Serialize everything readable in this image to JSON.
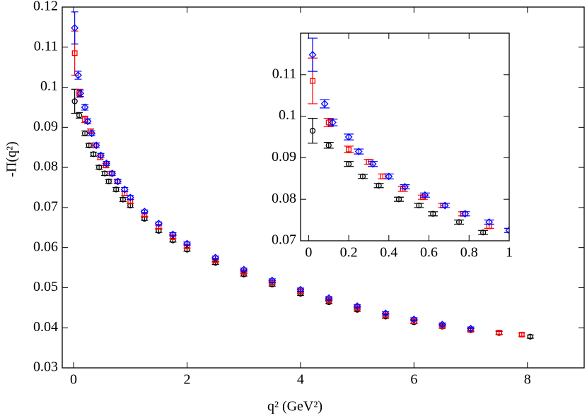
{
  "chart_data": [
    {
      "type": "scatter",
      "x_label": "q² (GeV²)",
      "y_label": "-Π(q²)",
      "xlim": [
        -0.2,
        9
      ],
      "ylim": [
        0.03,
        0.12
      ],
      "xticks": [
        0,
        2,
        4,
        6,
        8
      ],
      "yticks": [
        0.03,
        0.04,
        0.05,
        0.06,
        0.07,
        0.08,
        0.09,
        0.1,
        0.11,
        0.12
      ],
      "series": [
        {
          "color": "#000000",
          "marker": "circle",
          "x": [
            0.02,
            0.1,
            0.2,
            0.27,
            0.35,
            0.45,
            0.55,
            0.62,
            0.75,
            0.87,
            1.0,
            1.25,
            1.5,
            1.75,
            2.0,
            2.5,
            3.0,
            3.5,
            4.0,
            4.5,
            5.0,
            5.5,
            6.0,
            6.5,
            7.0,
            7.5,
            8.05
          ],
          "values": [
            0.0965,
            0.093,
            0.0885,
            0.0855,
            0.0833,
            0.08,
            0.0785,
            0.0765,
            0.0745,
            0.072,
            0.0705,
            0.0672,
            0.0642,
            0.0618,
            0.0595,
            0.0562,
            0.0533,
            0.0508,
            0.0485,
            0.0464,
            0.0445,
            0.0428,
            0.0414,
            0.0403,
            0.0394,
            0.0387,
            0.0378
          ],
          "errors": [
            0.003,
            0.0007,
            0.0006,
            0.0005,
            0.0005,
            0.0005,
            0.0005,
            0.0005,
            0.0005,
            0.0005,
            0.0005,
            0.0004,
            0.0004,
            0.0004,
            0.0004,
            0.0004,
            0.0004,
            0.0004,
            0.0004,
            0.0004,
            0.0004,
            0.0004,
            0.0004,
            0.0004,
            0.0004,
            0.0004,
            0.0004
          ]
        },
        {
          "color": "#ff0000",
          "marker": "square",
          "x": [
            0.02,
            0.1,
            0.2,
            0.3,
            0.37,
            0.47,
            0.57,
            0.67,
            0.77,
            0.9,
            1.0,
            1.25,
            1.5,
            1.75,
            2.0,
            2.5,
            3.0,
            3.5,
            4.0,
            4.5,
            5.0,
            5.5,
            6.0,
            6.5,
            7.0,
            7.5,
            7.9
          ],
          "values": [
            0.1085,
            0.0985,
            0.092,
            0.089,
            0.0855,
            0.0825,
            0.0805,
            0.0785,
            0.0765,
            0.0735,
            0.0715,
            0.0682,
            0.0652,
            0.0626,
            0.0603,
            0.0568,
            0.0539,
            0.0513,
            0.049,
            0.0469,
            0.0449,
            0.0431,
            0.0416,
            0.0404,
            0.0395,
            0.0388,
            0.0383
          ],
          "errors": [
            0.0055,
            0.001,
            0.0008,
            0.0006,
            0.0006,
            0.0006,
            0.0005,
            0.0005,
            0.0005,
            0.0005,
            0.0005,
            0.0004,
            0.0004,
            0.0004,
            0.0004,
            0.0004,
            0.0004,
            0.0004,
            0.0004,
            0.0004,
            0.0004,
            0.0004,
            0.0004,
            0.0004,
            0.0004,
            0.0004,
            0.0004
          ]
        },
        {
          "color": "#0000ff",
          "marker": "diamond",
          "x": [
            0.02,
            0.08,
            0.12,
            0.2,
            0.25,
            0.32,
            0.4,
            0.48,
            0.58,
            0.68,
            0.78,
            0.9,
            1.0,
            1.25,
            1.5,
            1.75,
            2.0,
            2.5,
            3.0,
            3.5,
            4.0,
            4.5,
            5.0,
            5.5,
            6.0,
            6.5,
            7.0
          ],
          "values": [
            0.1148,
            0.103,
            0.0985,
            0.095,
            0.0915,
            0.0885,
            0.0855,
            0.083,
            0.081,
            0.0785,
            0.0765,
            0.0745,
            0.0725,
            0.069,
            0.066,
            0.0633,
            0.061,
            0.0575,
            0.0545,
            0.0518,
            0.0495,
            0.0474,
            0.0454,
            0.0436,
            0.0421,
            0.0408,
            0.0398
          ],
          "errors": [
            0.004,
            0.001,
            0.0008,
            0.0007,
            0.0006,
            0.0006,
            0.0006,
            0.0005,
            0.0005,
            0.0005,
            0.0005,
            0.0005,
            0.0005,
            0.0004,
            0.0004,
            0.0004,
            0.0004,
            0.0004,
            0.0004,
            0.0004,
            0.0004,
            0.0004,
            0.0004,
            0.0004,
            0.0004,
            0.0004,
            0.0004
          ]
        }
      ]
    },
    {
      "type": "scatter",
      "xlim": [
        -0.04,
        1
      ],
      "ylim": [
        0.07,
        0.12
      ],
      "xticks": [
        0,
        0.2,
        0.4,
        0.6,
        0.8,
        1
      ],
      "yticks": [
        0.07,
        0.08,
        0.09,
        0.1,
        0.11
      ],
      "series": [
        {
          "color": "#000000",
          "marker": "circle",
          "x": [
            0.02,
            0.1,
            0.2,
            0.27,
            0.35,
            0.45,
            0.55,
            0.62,
            0.75,
            0.87
          ],
          "values": [
            0.0965,
            0.093,
            0.0885,
            0.0855,
            0.0833,
            0.08,
            0.0785,
            0.0765,
            0.0745,
            0.072
          ],
          "errors": [
            0.003,
            0.0007,
            0.0006,
            0.0005,
            0.0005,
            0.0005,
            0.0005,
            0.0005,
            0.0005,
            0.0005
          ]
        },
        {
          "color": "#ff0000",
          "marker": "square",
          "x": [
            0.02,
            0.1,
            0.2,
            0.3,
            0.37,
            0.47,
            0.57,
            0.67,
            0.77,
            0.9
          ],
          "values": [
            0.1085,
            0.0985,
            0.092,
            0.089,
            0.0855,
            0.0825,
            0.0805,
            0.0785,
            0.0765,
            0.0735
          ],
          "errors": [
            0.0055,
            0.001,
            0.0008,
            0.0006,
            0.0006,
            0.0006,
            0.0005,
            0.0005,
            0.0005,
            0.0005
          ]
        },
        {
          "color": "#0000ff",
          "marker": "diamond",
          "x": [
            0.02,
            0.08,
            0.12,
            0.2,
            0.25,
            0.32,
            0.4,
            0.48,
            0.58,
            0.68,
            0.78,
            0.9,
            1.0
          ],
          "values": [
            0.1148,
            0.103,
            0.0985,
            0.095,
            0.0915,
            0.0885,
            0.0855,
            0.083,
            0.081,
            0.0785,
            0.0765,
            0.0745,
            0.0725
          ],
          "errors": [
            0.004,
            0.001,
            0.0008,
            0.0007,
            0.0006,
            0.0006,
            0.0006,
            0.0005,
            0.0005,
            0.0005,
            0.0005,
            0.0005,
            0.0005
          ]
        }
      ]
    }
  ]
}
